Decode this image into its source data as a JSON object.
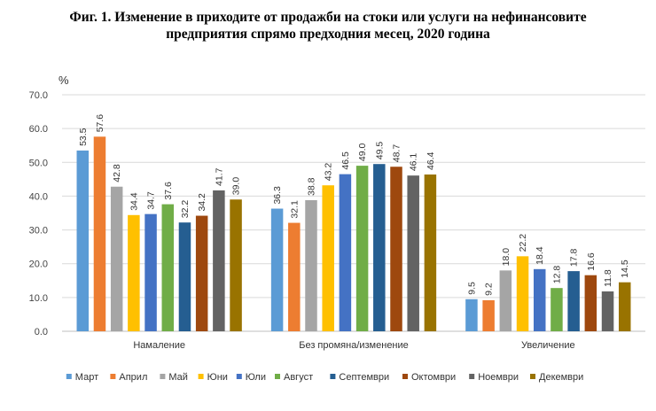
{
  "chart_data": {
    "type": "bar",
    "title_line1": "Фиг. 1. Изменение в приходите от продажби на стоки или услуги на нефинансовите",
    "title_line2": "предприятия спрямо предходния месец, 2020 година",
    "ylabel": "%",
    "ylim": [
      0,
      70
    ],
    "yticks": [
      "0.0",
      "10.0",
      "20.0",
      "30.0",
      "40.0",
      "50.0",
      "60.0",
      "70.0"
    ],
    "grid": true,
    "legend_position": "bottom",
    "categories": [
      "Намаление",
      "Без промяна/изменение",
      "Увеличение"
    ],
    "series": [
      {
        "name": "Март",
        "color": "#5B9BD5",
        "values": [
          53.5,
          36.3,
          9.5
        ],
        "labels": [
          "53.5",
          "36.3",
          "9.5"
        ]
      },
      {
        "name": "Април",
        "color": "#ED7D31",
        "values": [
          57.6,
          32.1,
          9.2
        ],
        "labels": [
          "57.6",
          "32.1",
          "9.2"
        ]
      },
      {
        "name": "Май",
        "color": "#A5A5A5",
        "values": [
          42.8,
          38.8,
          18.0
        ],
        "labels": [
          "42.8",
          "38.8",
          "18.0"
        ]
      },
      {
        "name": "Юни",
        "color": "#FFC000",
        "values": [
          34.4,
          43.2,
          22.2
        ],
        "labels": [
          "34.4",
          "43.2",
          "22.2"
        ]
      },
      {
        "name": "Юли",
        "color": "#4472C4",
        "values": [
          34.7,
          46.5,
          18.4
        ],
        "labels": [
          "34.7",
          "46.5",
          "18.4"
        ]
      },
      {
        "name": "Август",
        "color": "#70AD47",
        "values": [
          37.6,
          49.0,
          12.8
        ],
        "labels": [
          "37.6",
          "49.0",
          "12.8"
        ]
      },
      {
        "name": "Септември",
        "color": "#255E91",
        "values": [
          32.2,
          49.5,
          17.8
        ],
        "labels": [
          "32.2",
          "49.5",
          "17.8"
        ]
      },
      {
        "name": "Октомври",
        "color": "#9E480E",
        "values": [
          34.2,
          48.7,
          16.6
        ],
        "labels": [
          "34.2",
          "48.7",
          "16.6"
        ]
      },
      {
        "name": "Ноември",
        "color": "#636363",
        "values": [
          41.7,
          46.1,
          11.8
        ],
        "labels": [
          "41.7",
          "46.1",
          "11.8"
        ]
      },
      {
        "name": "Декември",
        "color": "#997300",
        "values": [
          39.0,
          46.4,
          14.5
        ],
        "labels": [
          "39.0",
          "46.4",
          "14.5"
        ]
      }
    ]
  }
}
